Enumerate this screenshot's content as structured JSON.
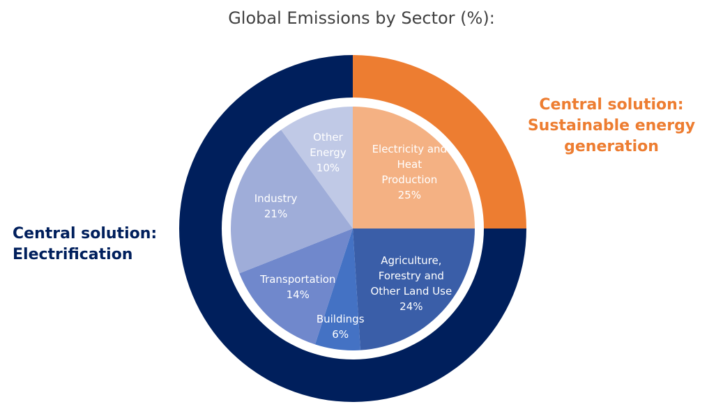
{
  "chart_data": [
    {
      "type": "pie",
      "title": "Global Emissions by Sector (%):",
      "categories": [
        "Electricity and Heat Production",
        "Agriculture, Forestry and Other Land Use",
        "Buildings",
        "Transportation",
        "Industry",
        "Other Energy"
      ],
      "values": [
        25,
        24,
        6,
        14,
        21,
        10
      ],
      "value_labels": [
        "25%",
        "24%",
        "6%",
        "14%",
        "21%",
        "10%"
      ],
      "colors": [
        "#f4b183",
        "#3a5ea8",
        "#4472c4",
        "#7088cc",
        "#9fadd9",
        "#c0c9e6"
      ]
    },
    {
      "type": "donut",
      "categories": [
        "Central solution: Sustainable energy generation",
        "Central solution: Electrification"
      ],
      "values": [
        25,
        75
      ],
      "colors": [
        "#ed7d31",
        "#001f5c"
      ]
    }
  ]
}
